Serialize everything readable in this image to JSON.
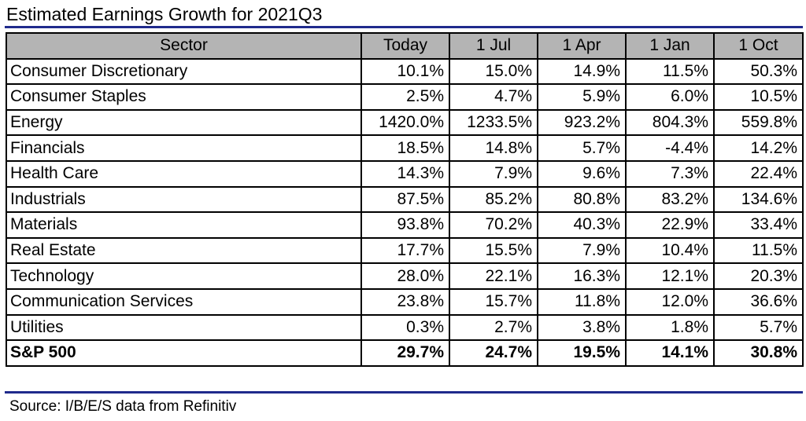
{
  "title": "Estimated Earnings Growth for 2021Q3",
  "accent_color": "#1f2a8c",
  "header_fill": "#b4b4b4",
  "columns": [
    "Sector",
    "Today",
    "1 Jul",
    "1 Apr",
    "1 Jan",
    "1 Oct"
  ],
  "rows": [
    {
      "sector": "Consumer Discretionary",
      "values": [
        "10.1%",
        "15.0%",
        "14.9%",
        "11.5%",
        "50.3%"
      ]
    },
    {
      "sector": "Consumer Staples",
      "values": [
        "2.5%",
        "4.7%",
        "5.9%",
        "6.0%",
        "10.5%"
      ]
    },
    {
      "sector": "Energy",
      "values": [
        "1420.0%",
        "1233.5%",
        "923.2%",
        "804.3%",
        "559.8%"
      ]
    },
    {
      "sector": "Financials",
      "values": [
        "18.5%",
        "14.8%",
        "5.7%",
        "-4.4%",
        "14.2%"
      ]
    },
    {
      "sector": "Health Care",
      "values": [
        "14.3%",
        "7.9%",
        "9.6%",
        "7.3%",
        "22.4%"
      ]
    },
    {
      "sector": "Industrials",
      "values": [
        "87.5%",
        "85.2%",
        "80.8%",
        "83.2%",
        "134.6%"
      ]
    },
    {
      "sector": "Materials",
      "values": [
        "93.8%",
        "70.2%",
        "40.3%",
        "22.9%",
        "33.4%"
      ]
    },
    {
      "sector": "Real Estate",
      "values": [
        "17.7%",
        "15.5%",
        "7.9%",
        "10.4%",
        "11.5%"
      ]
    },
    {
      "sector": "Technology",
      "values": [
        "28.0%",
        "22.1%",
        "16.3%",
        "12.1%",
        "20.3%"
      ]
    },
    {
      "sector": "Communication Services",
      "values": [
        "23.8%",
        "15.7%",
        "11.8%",
        "12.0%",
        "36.6%"
      ]
    },
    {
      "sector": "Utilities",
      "values": [
        "0.3%",
        "2.7%",
        "3.8%",
        "1.8%",
        "5.7%"
      ]
    }
  ],
  "total": {
    "sector": "S&P 500",
    "values": [
      "29.7%",
      "24.7%",
      "19.5%",
      "14.1%",
      "30.8%"
    ]
  },
  "source": "Source: I/B/E/S data from Refinitiv"
}
